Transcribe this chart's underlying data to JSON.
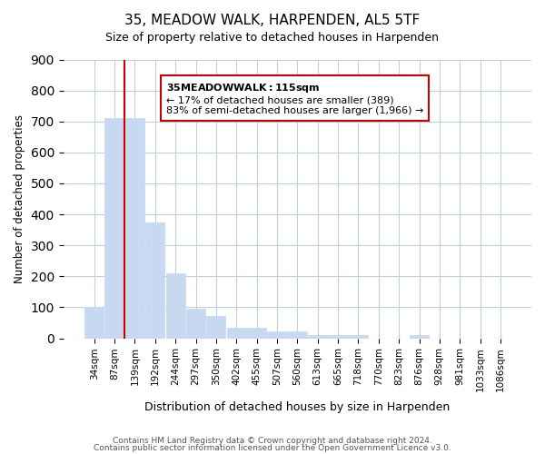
{
  "title1": "35, MEADOW WALK, HARPENDEN, AL5 5TF",
  "title2": "Size of property relative to detached houses in Harpenden",
  "xlabel": "Distribution of detached houses by size in Harpenden",
  "ylabel": "Number of detached properties",
  "bar_labels": [
    "34sqm",
    "87sqm",
    "139sqm",
    "192sqm",
    "244sqm",
    "297sqm",
    "350sqm",
    "402sqm",
    "455sqm",
    "507sqm",
    "560sqm",
    "613sqm",
    "665sqm",
    "718sqm",
    "770sqm",
    "823sqm",
    "876sqm",
    "928sqm",
    "981sqm",
    "1033sqm",
    "1086sqm"
  ],
  "bar_values": [
    100,
    710,
    710,
    375,
    210,
    95,
    73,
    35,
    35,
    22,
    22,
    10,
    10,
    10,
    0,
    0,
    10,
    0,
    0,
    0,
    0
  ],
  "bar_color": "#c6d9f0",
  "vline_x": 1,
  "vline_color": "#cc0000",
  "annotation_title": "35 MEADOW WALK: 115sqm",
  "annotation_line1": "← 17% of detached houses are smaller (389)",
  "annotation_line2": "83% of semi-detached houses are larger (1,966) →",
  "annotation_box_color": "#ffffff",
  "annotation_box_edge": "#cc0000",
  "ylim": [
    0,
    900
  ],
  "yticks": [
    0,
    100,
    200,
    300,
    400,
    500,
    600,
    700,
    800,
    900
  ],
  "footnote1": "Contains HM Land Registry data © Crown copyright and database right 2024.",
  "footnote2": "Contains public sector information licensed under the Open Government Licence v3.0.",
  "bg_color": "#ffffff",
  "grid_color": "#c0cfe0"
}
